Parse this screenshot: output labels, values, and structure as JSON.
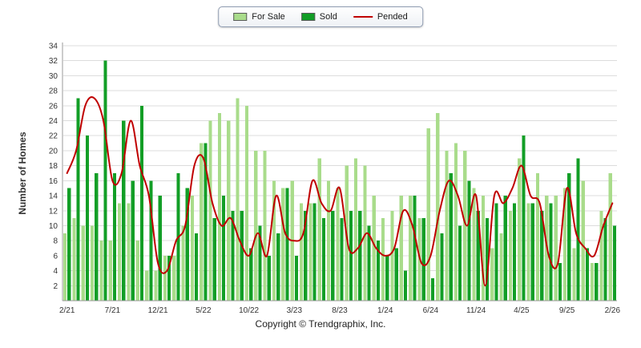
{
  "footer": {
    "copyright": "Copyright © Trendgraphix, Inc."
  },
  "chart_data": {
    "type": "bar",
    "title": "",
    "xlabel": "",
    "ylabel": "Number of Homes",
    "ylim": [
      0,
      34
    ],
    "ytick_step": 2,
    "grid": true,
    "legend_position": "top-center",
    "x_tick_interval": 5,
    "x_tick_labels": [
      "2/21",
      "7/21",
      "12/21",
      "5/22",
      "10/22",
      "3/23",
      "8/23",
      "1/24",
      "6/24",
      "11/24",
      "4/25",
      "9/25",
      "2/26"
    ],
    "categories": [
      "2/21",
      "3/21",
      "4/21",
      "5/21",
      "6/21",
      "7/21",
      "8/21",
      "9/21",
      "10/21",
      "11/21",
      "12/21",
      "1/22",
      "2/22",
      "3/22",
      "4/22",
      "5/22",
      "6/22",
      "7/22",
      "8/22",
      "9/22",
      "10/22",
      "11/22",
      "12/22",
      "1/23",
      "2/23",
      "3/23",
      "4/23",
      "5/23",
      "6/23",
      "7/23",
      "8/23",
      "9/23",
      "10/23",
      "11/23",
      "12/23",
      "1/24",
      "2/24",
      "3/24",
      "4/24",
      "5/24",
      "6/24",
      "7/24",
      "8/24",
      "9/24",
      "10/24",
      "11/24",
      "12/24",
      "1/25",
      "2/25",
      "3/25",
      "4/25",
      "5/25",
      "6/25",
      "7/25",
      "8/25",
      "9/25",
      "10/25",
      "11/25",
      "12/25",
      "1/26",
      "2/26"
    ],
    "series": [
      {
        "name": "For Sale",
        "type": "bar",
        "color": "#A9DC8B",
        "values": [
          9,
          11,
          10,
          10,
          8,
          8,
          13,
          13,
          8,
          4,
          4,
          6,
          6,
          10,
          14,
          21,
          24,
          25,
          24,
          27,
          26,
          20,
          20,
          16,
          15,
          16,
          13,
          13,
          19,
          16,
          15,
          18,
          19,
          18,
          14,
          11,
          12,
          14,
          14,
          11,
          23,
          25,
          20,
          21,
          20,
          15,
          14,
          7,
          9,
          12,
          19,
          13,
          17,
          14,
          14,
          15,
          7,
          16,
          5,
          12,
          17
        ]
      },
      {
        "name": "Sold",
        "type": "bar",
        "color": "#129E26",
        "values": [
          15,
          27,
          22,
          17,
          32,
          17,
          24,
          16,
          26,
          16,
          14,
          6,
          17,
          15,
          9,
          21,
          11,
          14,
          12,
          12,
          7,
          10,
          6,
          9,
          15,
          6,
          12,
          13,
          11,
          12,
          11,
          12,
          12,
          10,
          8,
          6,
          7,
          4,
          14,
          11,
          3,
          9,
          17,
          10,
          16,
          12,
          11,
          13,
          14,
          13,
          22,
          13,
          12,
          13,
          5,
          17,
          19,
          7,
          5,
          11,
          10
        ]
      },
      {
        "name": "Pended",
        "type": "line",
        "color": "#C00000",
        "values": [
          17,
          20,
          26,
          27,
          24,
          16,
          17,
          24,
          18,
          14,
          5,
          4,
          8,
          10,
          18,
          19,
          13,
          10,
          11,
          8,
          6,
          9,
          6,
          14,
          9,
          8,
          9,
          16,
          13,
          12,
          15,
          7,
          7,
          9,
          7,
          6,
          7,
          12,
          10,
          5,
          6,
          12,
          16,
          14,
          10,
          14,
          2,
          14,
          13,
          15,
          18,
          14,
          13,
          6,
          5,
          15,
          9,
          7,
          6,
          10,
          13
        ]
      }
    ],
    "colors": {
      "grid": "#DCDCDC",
      "axis": "#9A9A9A",
      "text": "#333333"
    }
  }
}
